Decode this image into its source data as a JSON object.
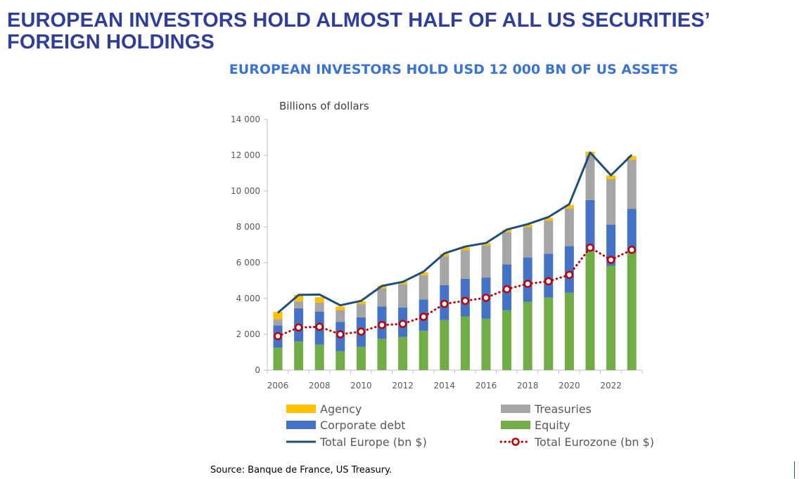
{
  "headline": "EUROPEAN INVESTORS HOLD ALMOST HALF OF ALL US SECURITIES’ FOREIGN HOLDINGS",
  "source": "Source: Banque de France, US Treasury.",
  "chart_data": {
    "type": "bar",
    "title": "EUROPEAN INVESTORS HOLD USD 12 000 BN OF US ASSETS",
    "ylabel": "Billions of dollars",
    "xlabel": "",
    "ylim": [
      0,
      14000
    ],
    "yticks": [
      0,
      2000,
      4000,
      6000,
      8000,
      10000,
      12000,
      14000
    ],
    "ytick_labels": [
      "0",
      "2 000",
      "4 000",
      "6 000",
      "8 000",
      "10 000",
      "12 000",
      "14 000"
    ],
    "categories": [
      2006,
      2007,
      2008,
      2009,
      2010,
      2011,
      2012,
      2013,
      2014,
      2015,
      2016,
      2017,
      2018,
      2019,
      2020,
      2021,
      2022,
      2023
    ],
    "xtick_labels": [
      "2006",
      "2008",
      "2010",
      "2012",
      "2014",
      "2016",
      "2018",
      "2020",
      "2022"
    ],
    "stacked": true,
    "series": [
      {
        "name": "Equity",
        "kind": "bar",
        "color": "#70ad47",
        "values": [
          1250,
          1600,
          1420,
          1050,
          1300,
          1750,
          1850,
          2200,
          2800,
          3000,
          2870,
          3350,
          3820,
          4050,
          4320,
          6620,
          5820,
          6550
        ]
      },
      {
        "name": "Corporate debt",
        "kind": "bar",
        "color": "#4472c4",
        "values": [
          1250,
          1850,
          1850,
          1650,
          1650,
          1800,
          1650,
          1750,
          1950,
          2100,
          2300,
          2550,
          2470,
          2450,
          2600,
          2880,
          2300,
          2450
        ]
      },
      {
        "name": "Treasuries",
        "kind": "bar",
        "color": "#a5a5a5",
        "values": [
          350,
          400,
          500,
          650,
          750,
          1000,
          1300,
          1350,
          1600,
          1600,
          1800,
          1800,
          1700,
          1850,
          2100,
          2500,
          2550,
          2750
        ]
      },
      {
        "name": "Agency",
        "kind": "bar",
        "color": "#ffc000",
        "values": [
          400,
          350,
          300,
          200,
          150,
          150,
          150,
          150,
          150,
          150,
          130,
          130,
          130,
          150,
          200,
          200,
          200,
          200
        ]
      },
      {
        "name": "Total Europe (bn $)",
        "kind": "line",
        "color": "#1f4e79",
        "values": [
          3200,
          4200,
          4220,
          3620,
          3870,
          4700,
          4930,
          5500,
          6520,
          6900,
          7100,
          7850,
          8150,
          8550,
          9270,
          12150,
          10880,
          12020
        ]
      },
      {
        "name": "Total Eurozone (bn $)",
        "kind": "line-marker",
        "color": "#c00000",
        "values": [
          1900,
          2380,
          2420,
          2000,
          2150,
          2520,
          2580,
          2980,
          3700,
          3870,
          4040,
          4520,
          4820,
          4960,
          5320,
          6840,
          6160,
          6720
        ]
      }
    ],
    "legend": [
      {
        "name": "Agency",
        "kind": "box",
        "color": "#ffc000"
      },
      {
        "name": "Treasuries",
        "kind": "box",
        "color": "#a5a5a5"
      },
      {
        "name": "Corporate debt",
        "kind": "box",
        "color": "#4472c4"
      },
      {
        "name": "Equity",
        "kind": "box",
        "color": "#70ad47"
      },
      {
        "name": "Total Europe (bn $)",
        "kind": "line",
        "color": "#1f4e79"
      },
      {
        "name": "Total Eurozone (bn $)",
        "kind": "dotted-marker",
        "color": "#c00000"
      }
    ],
    "legend_position": "bottom",
    "grid": false
  }
}
